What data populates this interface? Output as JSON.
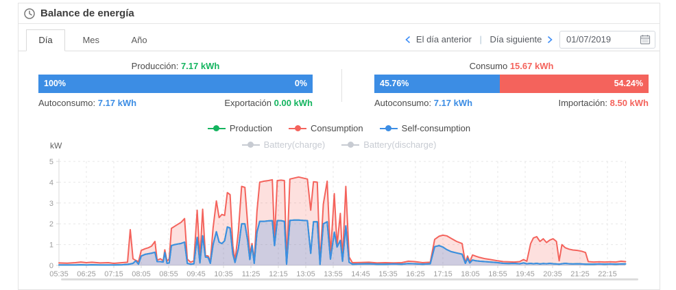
{
  "header": {
    "title": "Balance de energía",
    "icon": "clock"
  },
  "tabs": {
    "items": [
      {
        "label": "Día",
        "active": true
      },
      {
        "label": "Mes",
        "active": false
      },
      {
        "label": "Año",
        "active": false
      }
    ]
  },
  "nav": {
    "prev_label": "El día anterior",
    "next_label": "Día siguiente",
    "date_value": "01/07/2019"
  },
  "panels": {
    "production": {
      "title": "Producción:",
      "value": "7.17 kWh",
      "bar": {
        "left_text": "100%",
        "right_text": "0%",
        "blue_pct": 100
      },
      "footer_left": {
        "label": "Autoconsumo:",
        "value": "7.17 kWh",
        "value_color": "blue"
      },
      "footer_right": {
        "label": "Exportación",
        "value": "0.00 kWh",
        "value_color": "green"
      }
    },
    "consumption": {
      "title": "Consumo",
      "value": "15.67 kWh",
      "bar": {
        "left_text": "45.76%",
        "right_text": "54.24%",
        "blue_pct": 45.76
      },
      "footer_left": {
        "label": "Autoconsumo:",
        "value": "7.17 kWh",
        "value_color": "blue"
      },
      "footer_right": {
        "label": "Importación:",
        "value": "8.50 kWh",
        "value_color": "red"
      }
    }
  },
  "colors": {
    "blue": "#3C8DE4",
    "red": "#F4635C",
    "green": "#14B45F",
    "chevron_blue": "#3E8EF7",
    "legend_inactive": "#C7CBD2",
    "grid": "#E7E7E7",
    "axis": "#D8D8D8",
    "axis_text": "#9C9C9C",
    "red_fill": "rgba(244,99,92,0.20)",
    "blue_fill": "rgba(60,141,228,0.24)"
  },
  "chart_data": {
    "type": "area",
    "title": "",
    "ylabel": "kW",
    "ylim": [
      0,
      5
    ],
    "yticks": [
      0,
      1,
      2,
      3,
      4,
      5
    ],
    "xticks": [
      "05:35",
      "06:25",
      "07:15",
      "08:05",
      "08:55",
      "09:45",
      "10:35",
      "11:25",
      "12:15",
      "13:05",
      "13:55",
      "14:45",
      "15:35",
      "16:25",
      "17:15",
      "18:05",
      "18:55",
      "19:45",
      "20:35",
      "21:25",
      "22:15"
    ],
    "grid": "dashed",
    "legend_position": "top-center",
    "legend": [
      {
        "label": "Production",
        "color": "#14B45F",
        "active": true
      },
      {
        "label": "Consumption",
        "color": "#F4635C",
        "active": true
      },
      {
        "label": "Self-consumption",
        "color": "#3C8DE4",
        "active": true
      },
      {
        "label": "Battery(charge)",
        "color": "#C7CBD2",
        "active": false
      },
      {
        "label": "Battery(discharge)",
        "color": "#C7CBD2",
        "active": false
      }
    ],
    "production_equals_self_consumption": true,
    "columns": [
      "time",
      "consumption_kw",
      "self_consumption_kw"
    ],
    "points": [
      [
        "05:35",
        0.12,
        0.02
      ],
      [
        "05:50",
        0.11,
        0.02
      ],
      [
        "06:05",
        0.13,
        0.02
      ],
      [
        "06:15",
        0.16,
        0.03
      ],
      [
        "06:25",
        0.13,
        0.02
      ],
      [
        "06:35",
        0.15,
        0.03
      ],
      [
        "06:50",
        0.12,
        0.02
      ],
      [
        "07:05",
        0.13,
        0.02
      ],
      [
        "07:15",
        0.1,
        0.02
      ],
      [
        "07:30",
        0.13,
        0.03
      ],
      [
        "07:40",
        0.15,
        0.05
      ],
      [
        "07:45",
        1.72,
        0.07
      ],
      [
        "07:50",
        0.32,
        0.1
      ],
      [
        "07:55",
        0.24,
        0.22
      ],
      [
        "08:00",
        0.18,
        0.06
      ],
      [
        "08:05",
        0.72,
        0.45
      ],
      [
        "08:12",
        0.8,
        0.53
      ],
      [
        "08:18",
        0.85,
        0.56
      ],
      [
        "08:24",
        0.93,
        0.59
      ],
      [
        "08:30",
        1.15,
        0.63
      ],
      [
        "08:34",
        0.25,
        0.18
      ],
      [
        "08:40",
        0.32,
        0.18
      ],
      [
        "08:45",
        0.22,
        0.16
      ],
      [
        "08:48",
        0.75,
        0.62
      ],
      [
        "08:52",
        0.2,
        0.1
      ],
      [
        "08:56",
        0.32,
        0.12
      ],
      [
        "09:00",
        1.78,
        0.95
      ],
      [
        "09:06",
        1.88,
        1.0
      ],
      [
        "09:12",
        1.98,
        1.03
      ],
      [
        "09:18",
        2.08,
        1.06
      ],
      [
        "09:24",
        2.25,
        1.12
      ],
      [
        "09:29",
        0.3,
        0.1
      ],
      [
        "09:35",
        0.15,
        0.06
      ],
      [
        "09:41",
        0.22,
        0.08
      ],
      [
        "09:47",
        2.65,
        1.35
      ],
      [
        "09:52",
        0.35,
        0.12
      ],
      [
        "09:57",
        2.7,
        1.42
      ],
      [
        "10:02",
        0.48,
        0.4
      ],
      [
        "10:07",
        0.45,
        0.38
      ],
      [
        "10:11",
        0.18,
        0.1
      ],
      [
        "10:16",
        1.8,
        1.0
      ],
      [
        "10:22",
        3.1,
        1.62
      ],
      [
        "10:27",
        2.3,
        1.12
      ],
      [
        "10:32",
        2.45,
        1.05
      ],
      [
        "10:37",
        2.4,
        1.18
      ],
      [
        "10:42",
        3.5,
        1.85
      ],
      [
        "10:47",
        3.4,
        1.8
      ],
      [
        "10:52",
        0.95,
        0.55
      ],
      [
        "10:56",
        0.22,
        0.14
      ],
      [
        "11:02",
        1.6,
        0.8
      ],
      [
        "11:08",
        3.8,
        2.0
      ],
      [
        "11:14",
        3.75,
        2.0
      ],
      [
        "11:19",
        2.0,
        1.2
      ],
      [
        "11:23",
        0.55,
        0.28
      ],
      [
        "11:27",
        1.05,
        0.95
      ],
      [
        "11:31",
        0.22,
        0.1
      ],
      [
        "11:36",
        2.6,
        1.6
      ],
      [
        "11:41",
        4.0,
        2.12
      ],
      [
        "11:49",
        4.05,
        2.12
      ],
      [
        "11:57",
        4.08,
        2.14
      ],
      [
        "12:04",
        4.12,
        2.15
      ],
      [
        "12:08",
        1.25,
        0.95
      ],
      [
        "12:13",
        4.08,
        2.15
      ],
      [
        "12:20",
        4.1,
        2.15
      ],
      [
        "12:26",
        4.08,
        2.12
      ],
      [
        "12:30",
        0.12,
        0.06
      ],
      [
        "12:36",
        4.15,
        2.16
      ],
      [
        "12:44",
        4.2,
        2.18
      ],
      [
        "12:52",
        4.25,
        2.18
      ],
      [
        "13:00",
        4.2,
        2.16
      ],
      [
        "13:08",
        4.15,
        2.15
      ],
      [
        "13:14",
        2.65,
        0.58
      ],
      [
        "13:19",
        4.02,
        2.1
      ],
      [
        "13:26",
        4.0,
        2.1
      ],
      [
        "13:31",
        0.12,
        0.05
      ],
      [
        "13:37",
        2.95,
        2.0
      ],
      [
        "13:44",
        4.05,
        2.1
      ],
      [
        "13:50",
        0.5,
        0.3
      ],
      [
        "13:57",
        3.45,
        1.6
      ],
      [
        "14:02",
        0.95,
        0.88
      ],
      [
        "14:08",
        2.5,
        1.2
      ],
      [
        "14:12",
        0.3,
        0.2
      ],
      [
        "14:18",
        3.8,
        1.9
      ],
      [
        "14:24",
        0.4,
        0.15
      ],
      [
        "14:30",
        0.13,
        0.06
      ],
      [
        "14:45",
        0.14,
        0.07
      ],
      [
        "15:00",
        0.15,
        0.08
      ],
      [
        "15:15",
        0.12,
        0.06
      ],
      [
        "15:30",
        0.13,
        0.06
      ],
      [
        "15:45",
        0.12,
        0.07
      ],
      [
        "16:00",
        0.13,
        0.06
      ],
      [
        "16:12",
        0.2,
        0.09
      ],
      [
        "16:24",
        0.18,
        0.08
      ],
      [
        "16:38",
        0.13,
        0.06
      ],
      [
        "16:52",
        0.15,
        0.08
      ],
      [
        "17:00",
        1.25,
        0.9
      ],
      [
        "17:08",
        1.4,
        0.95
      ],
      [
        "17:15",
        1.45,
        0.88
      ],
      [
        "17:22",
        1.42,
        0.76
      ],
      [
        "17:30",
        1.3,
        0.66
      ],
      [
        "17:40",
        1.15,
        0.6
      ],
      [
        "17:50",
        1.05,
        0.54
      ],
      [
        "17:56",
        0.12,
        0.1
      ],
      [
        "18:00",
        0.45,
        0.34
      ],
      [
        "18:04",
        0.16,
        0.12
      ],
      [
        "18:09",
        0.5,
        0.26
      ],
      [
        "18:15",
        0.44,
        0.22
      ],
      [
        "18:22",
        0.38,
        0.2
      ],
      [
        "18:32",
        0.32,
        0.18
      ],
      [
        "18:42",
        0.28,
        0.16
      ],
      [
        "18:55",
        0.22,
        0.13
      ],
      [
        "19:05",
        0.18,
        0.1
      ],
      [
        "19:15",
        0.17,
        0.09
      ],
      [
        "19:25",
        0.16,
        0.1
      ],
      [
        "19:35",
        0.18,
        0.08
      ],
      [
        "19:42",
        0.28,
        0.12
      ],
      [
        "19:48",
        0.2,
        0.08
      ],
      [
        "19:55",
        1.05,
        0.1
      ],
      [
        "20:00",
        1.32,
        0.08
      ],
      [
        "20:06",
        1.38,
        0.1
      ],
      [
        "20:12",
        1.15,
        0.07
      ],
      [
        "20:18",
        1.28,
        0.09
      ],
      [
        "20:24",
        1.1,
        0.08
      ],
      [
        "20:30",
        1.22,
        0.1
      ],
      [
        "20:36",
        1.28,
        0.08
      ],
      [
        "20:42",
        1.15,
        0.07
      ],
      [
        "20:47",
        0.22,
        0.06
      ],
      [
        "20:52",
        1.0,
        0.08
      ],
      [
        "20:58",
        0.85,
        0.1
      ],
      [
        "21:05",
        0.78,
        0.08
      ],
      [
        "21:12",
        0.74,
        0.07
      ],
      [
        "21:20",
        0.72,
        0.08
      ],
      [
        "21:28",
        0.68,
        0.07
      ],
      [
        "21:35",
        0.62,
        0.06
      ],
      [
        "21:40",
        0.18,
        0.06
      ],
      [
        "21:50",
        0.16,
        0.06
      ],
      [
        "22:00",
        0.17,
        0.07
      ],
      [
        "22:10",
        0.16,
        0.06
      ],
      [
        "22:20",
        0.17,
        0.07
      ],
      [
        "22:30",
        0.16,
        0.06
      ],
      [
        "22:40",
        0.2,
        0.07
      ],
      [
        "22:48",
        0.18,
        0.07
      ]
    ]
  }
}
